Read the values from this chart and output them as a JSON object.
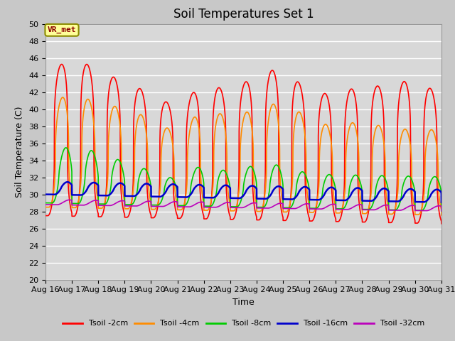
{
  "title": "Soil Temperatures Set 1",
  "xlabel": "Time",
  "ylabel": "Soil Temperature (C)",
  "ylim": [
    20,
    50
  ],
  "yticks": [
    20,
    22,
    24,
    26,
    28,
    30,
    32,
    34,
    36,
    38,
    40,
    42,
    44,
    46,
    48,
    50
  ],
  "x_labels": [
    "Aug 16",
    "Aug 17",
    "Aug 18",
    "Aug 19",
    "Aug 20",
    "Aug 21",
    "Aug 22",
    "Aug 23",
    "Aug 24",
    "Aug 25",
    "Aug 26",
    "Aug 27",
    "Aug 28",
    "Aug 29",
    "Aug 30",
    "Aug 31"
  ],
  "annotation_text": "VR_met",
  "annotation_bg": "#ffff99",
  "annotation_border": "#8B8B00",
  "series_colors": [
    "#ff0000",
    "#ff8c00",
    "#00cc00",
    "#0000cc",
    "#bb00bb"
  ],
  "series_labels": [
    "Tsoil -2cm",
    "Tsoil -4cm",
    "Tsoil -8cm",
    "Tsoil -16cm",
    "Tsoil -32cm"
  ],
  "series_linewidths": [
    1.2,
    1.2,
    1.2,
    1.8,
    1.2
  ],
  "fig_bg_color": "#c8c8c8",
  "plot_bg_color": "#d8d8d8",
  "grid_color": "#ffffff",
  "title_fontsize": 12,
  "label_fontsize": 9,
  "tick_fontsize": 8
}
